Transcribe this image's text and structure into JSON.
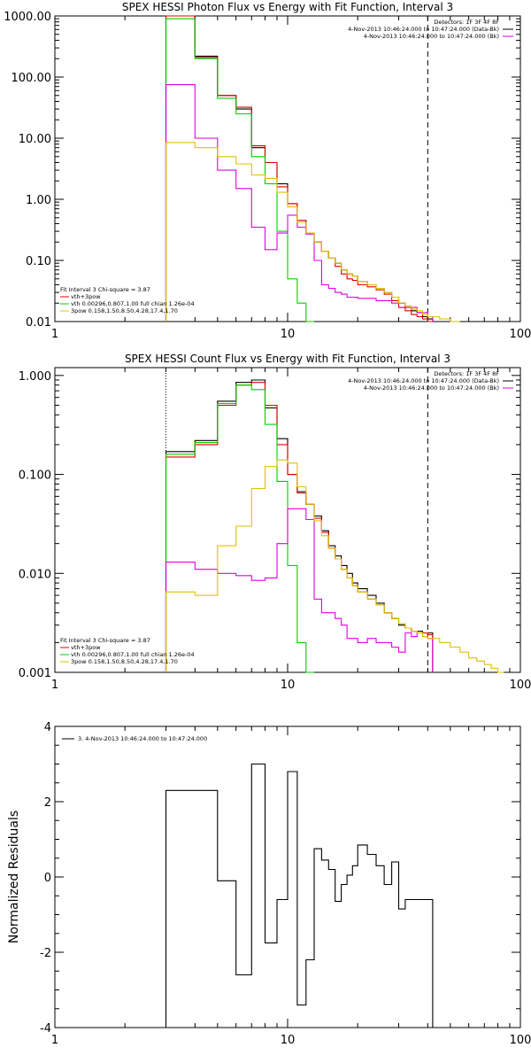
{
  "chart_data": [
    {
      "type": "line",
      "title": "SPEX HESSI Photon Flux vs Energy with Fit Function, Interval 3",
      "xlabel": "",
      "ylabel": "",
      "xscale": "log",
      "yscale": "log",
      "xlim": [
        1,
        100
      ],
      "ylim": [
        0.01,
        1000
      ],
      "xticks": [
        "1",
        "10",
        "100"
      ],
      "yticks": [
        "0.01",
        "0.10",
        "1.00",
        "10.00",
        "100.00",
        "1000.00"
      ],
      "dotted_line_x": 3,
      "dashed_line_x": 40,
      "legend_top_right": [
        "Detectors: 1F 3F 4F 8F",
        "4-Nov-2013 10:46:24.000 to 10:47:24.000 (Data-Bk)",
        "4-Nov-2013 10:46:24.000 to 10:47:24.000 (Bk)"
      ],
      "legend_bottom_left": [
        "Fit Interval 3   Chi-square = 3.87",
        "vth+3pow",
        "vth 0.00296,0.807,1.00  full chian 1.26e-04",
        "3pow 0.158,1.50,8.50,4.28,17.4,1.70"
      ],
      "series": [
        {
          "color": "#000000",
          "style": "step",
          "x": [
            3,
            4,
            5,
            6,
            7,
            8,
            9,
            10,
            11,
            12,
            13,
            14,
            15,
            16,
            17,
            18,
            19,
            20,
            22,
            24,
            26,
            28,
            30,
            32,
            34,
            36,
            38,
            40
          ],
          "values": [
            1000,
            220,
            50,
            30,
            7,
            4,
            1.8,
            0.85,
            0.45,
            0.28,
            0.2,
            0.14,
            0.11,
            0.09,
            0.07,
            0.06,
            0.055,
            0.045,
            0.04,
            0.035,
            0.03,
            0.025,
            0.02,
            0.017,
            0.015,
            0.014,
            0.012,
            0.011
          ]
        },
        {
          "color": "#e00000",
          "style": "step",
          "x": [
            3,
            4,
            5,
            6,
            7,
            8,
            9,
            10,
            11,
            12,
            13,
            14,
            15,
            16,
            17,
            18,
            19,
            20,
            22,
            24,
            26,
            28,
            30,
            32,
            34,
            36,
            38,
            40
          ],
          "values": [
            1000,
            210,
            50,
            32,
            7.5,
            4,
            1.6,
            0.85,
            0.45,
            0.28,
            0.2,
            0.14,
            0.11,
            0.08,
            0.06,
            0.05,
            0.047,
            0.04,
            0.037,
            0.033,
            0.028,
            0.022,
            0.017,
            0.015,
            0.013,
            0.012,
            0.011,
            0.01
          ]
        },
        {
          "color": "#00d000",
          "style": "step",
          "x": [
            3,
            4,
            5,
            6,
            7,
            8,
            9,
            10,
            11,
            12
          ],
          "values": [
            900,
            200,
            45,
            25,
            5,
            1.8,
            0.3,
            0.05,
            0.02,
            0.01
          ]
        },
        {
          "color": "#e000e0",
          "style": "step",
          "x": [
            3,
            4,
            5,
            6,
            7,
            8,
            9,
            10,
            11,
            12,
            13,
            14,
            15,
            16,
            17,
            18,
            19,
            20,
            22,
            24,
            26,
            28,
            30,
            32,
            34,
            36,
            38,
            40
          ],
          "values": [
            75,
            10,
            3,
            1.5,
            0.35,
            0.15,
            0.28,
            0.55,
            0.35,
            0.27,
            0.1,
            0.04,
            0.035,
            0.03,
            0.028,
            0.025,
            0.025,
            0.024,
            0.024,
            0.022,
            0.022,
            0.02,
            0.02,
            0.017,
            0.017,
            0.014,
            0.014,
            0.012
          ]
        },
        {
          "color": "#e0c000",
          "style": "step",
          "x": [
            3,
            4,
            5,
            6,
            7,
            8,
            9,
            10,
            11,
            12,
            13,
            14,
            15,
            16,
            17,
            18,
            19,
            20,
            22,
            24,
            26,
            28,
            30,
            32,
            34,
            36,
            38,
            40,
            45,
            50
          ],
          "values": [
            8.5,
            7,
            5,
            3.8,
            2.5,
            2.2,
            1.3,
            0.75,
            0.42,
            0.28,
            0.2,
            0.14,
            0.11,
            0.09,
            0.07,
            0.06,
            0.055,
            0.045,
            0.04,
            0.035,
            0.03,
            0.025,
            0.02,
            0.018,
            0.016,
            0.015,
            0.013,
            0.012,
            0.011,
            0.01
          ]
        }
      ]
    },
    {
      "type": "line",
      "title": "SPEX HESSI Count Flux vs Energy with Fit Function, Interval 3",
      "xlabel": "",
      "ylabel": "",
      "xscale": "log",
      "yscale": "log",
      "xlim": [
        1,
        100
      ],
      "ylim": [
        0.001,
        1.2
      ],
      "xticks": [
        "1",
        "10",
        "100"
      ],
      "yticks": [
        "0.001",
        "0.010",
        "0.100",
        "1.000"
      ],
      "dotted_line_x": 3,
      "dashed_line_x": 40,
      "legend_top_right": [
        "Detectors: 1F 3F 4F 8F",
        "4-Nov-2013 10:46:24.000 to 10:47:24.000 (Data-Bk)",
        "4-Nov-2013 10:46:24.000 to 10:47:24.000 (Bk)"
      ],
      "legend_bottom_left": [
        "Fit Interval 3   Chi-square = 3.87",
        "vth+3pow",
        "vth 0.00296,0.807,1.00  full chian 1.26e-04",
        "3pow 0.158,1.50,8.50,4.28,17.4,1.70"
      ],
      "series": [
        {
          "color": "#000000",
          "style": "step",
          "x": [
            3,
            4,
            5,
            6,
            7,
            8,
            9,
            10,
            11,
            12,
            13,
            14,
            15,
            16,
            17,
            18,
            19,
            20,
            22,
            24,
            26,
            28,
            30,
            32,
            34,
            36,
            38,
            40
          ],
          "values": [
            0.17,
            0.22,
            0.55,
            0.85,
            0.9,
            0.47,
            0.23,
            0.1,
            0.067,
            0.05,
            0.038,
            0.027,
            0.019,
            0.015,
            0.012,
            0.01,
            0.008,
            0.007,
            0.006,
            0.005,
            0.004,
            0.0035,
            0.003,
            0.0028,
            0.0026,
            0.0026,
            0.0025,
            0.0025
          ]
        },
        {
          "color": "#e00000",
          "style": "step",
          "x": [
            3,
            4,
            5,
            6,
            7,
            8,
            9,
            10,
            11,
            12,
            13,
            14,
            15,
            16,
            17,
            18,
            19,
            20,
            22,
            24,
            26,
            28,
            30,
            32,
            34,
            36,
            38,
            40
          ],
          "values": [
            0.15,
            0.2,
            0.5,
            0.8,
            0.85,
            0.5,
            0.2,
            0.1,
            0.065,
            0.05,
            0.036,
            0.026,
            0.018,
            0.014,
            0.011,
            0.009,
            0.0075,
            0.0065,
            0.0055,
            0.0048,
            0.004,
            0.0035,
            0.0031,
            0.0028,
            0.0026,
            0.0025,
            0.0025,
            0.0024
          ]
        },
        {
          "color": "#00d000",
          "style": "step",
          "x": [
            3,
            4,
            5,
            6,
            7,
            8,
            9,
            10,
            11,
            12
          ],
          "values": [
            0.16,
            0.21,
            0.52,
            0.8,
            0.72,
            0.32,
            0.085,
            0.012,
            0.002,
            0.001
          ]
        },
        {
          "color": "#e000e0",
          "style": "step",
          "x": [
            3,
            4,
            5,
            6,
            7,
            8,
            9,
            10,
            11,
            12,
            13,
            14,
            15,
            16,
            17,
            18,
            19,
            20,
            22,
            24,
            26,
            28,
            30,
            32,
            34,
            36,
            38,
            40
          ],
          "values": [
            0.013,
            0.011,
            0.01,
            0.0095,
            0.0085,
            0.009,
            0.02,
            0.045,
            0.045,
            0.035,
            0.0055,
            0.004,
            0.004,
            0.0035,
            0.003,
            0.0022,
            0.0022,
            0.002,
            0.0022,
            0.002,
            0.002,
            0.0018,
            0.0016,
            0.0025,
            0.0023,
            0.0025,
            0.0023,
            0.0022
          ]
        },
        {
          "color": "#e0c000",
          "style": "step",
          "x": [
            3,
            4,
            5,
            6,
            7,
            8,
            9,
            10,
            11,
            12,
            13,
            14,
            15,
            16,
            17,
            18,
            19,
            20,
            22,
            24,
            26,
            28,
            30,
            32,
            34,
            36,
            38,
            40,
            45,
            50,
            55,
            60,
            65,
            70,
            75,
            80
          ],
          "values": [
            0.0065,
            0.006,
            0.019,
            0.03,
            0.072,
            0.12,
            0.14,
            0.13,
            0.075,
            0.05,
            0.034,
            0.024,
            0.018,
            0.014,
            0.011,
            0.009,
            0.0075,
            0.0065,
            0.0055,
            0.0048,
            0.004,
            0.0035,
            0.0031,
            0.0028,
            0.0026,
            0.0025,
            0.0023,
            0.0022,
            0.002,
            0.0018,
            0.0016,
            0.0014,
            0.0013,
            0.0012,
            0.0011,
            0.001
          ]
        }
      ]
    },
    {
      "type": "line",
      "title": "",
      "xlabel": "",
      "ylabel": "Normalized Residuals",
      "xscale": "log",
      "yscale": "linear",
      "xlim": [
        1,
        100
      ],
      "ylim": [
        -4,
        4
      ],
      "xticks": [
        "1",
        "10",
        "100"
      ],
      "yticks": [
        "-4",
        "-2",
        "0",
        "2",
        "4"
      ],
      "legend": [
        "3.  4-Nov-2013 10:46:24.000 to 10:47:24.000"
      ],
      "series": [
        {
          "color": "#000000",
          "style": "step",
          "x": [
            3,
            4,
            5,
            6,
            7,
            8,
            9,
            10,
            11,
            12,
            13,
            14,
            15,
            16,
            17,
            18,
            19,
            20,
            22,
            24,
            26,
            28,
            30,
            32,
            34,
            36,
            38,
            40
          ],
          "values": [
            2.3,
            2.3,
            -0.1,
            -2.6,
            3.0,
            -1.75,
            -0.6,
            2.8,
            -3.4,
            -2.2,
            0.75,
            0.45,
            0.2,
            -0.65,
            -0.2,
            0.05,
            0.3,
            0.85,
            0.6,
            0.3,
            -0.2,
            0.4,
            -0.85,
            -0.6,
            -0.6,
            -0.6,
            -0.6,
            -0.6
          ]
        }
      ]
    }
  ]
}
